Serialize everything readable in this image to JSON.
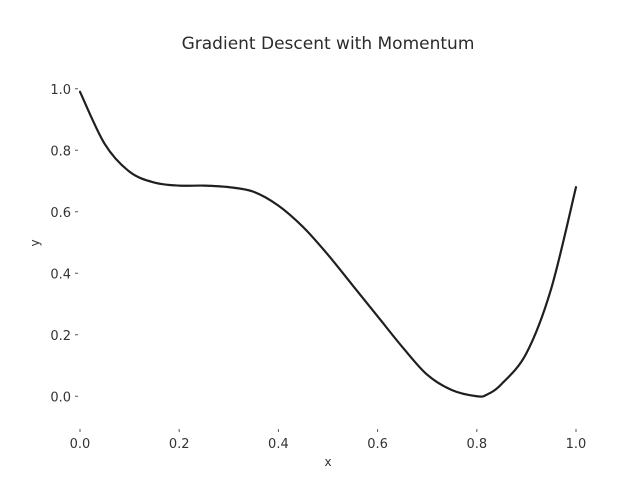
{
  "chart_data": {
    "type": "line",
    "title": "Gradient Descent with Momentum",
    "xlabel": "x",
    "ylabel": "y",
    "xlim": [
      0.0,
      1.0
    ],
    "ylim": [
      -0.1,
      1.1
    ],
    "xticks": [
      0.0,
      0.2,
      0.4,
      0.6,
      0.8,
      1.0
    ],
    "xtick_labels": [
      "0.0",
      "0.2",
      "0.4",
      "0.6",
      "0.8",
      "1.0"
    ],
    "yticks": [
      0.0,
      0.2,
      0.4,
      0.6,
      0.8,
      1.0
    ],
    "ytick_labels": [
      "0.0",
      "0.2",
      "0.4",
      "0.6",
      "0.8",
      "1.0"
    ],
    "grid": false,
    "line_color": "#1f1f1f",
    "series": [
      {
        "x": [
          0.0,
          0.05,
          0.1,
          0.15,
          0.2,
          0.25,
          0.3,
          0.35,
          0.4,
          0.45,
          0.5,
          0.55,
          0.6,
          0.65,
          0.7,
          0.75,
          0.8,
          0.82,
          0.85,
          0.9,
          0.95,
          1.0
        ],
        "y": [
          0.99,
          0.82,
          0.73,
          0.695,
          0.685,
          0.685,
          0.68,
          0.665,
          0.62,
          0.55,
          0.46,
          0.36,
          0.26,
          0.16,
          0.07,
          0.02,
          0.0,
          0.005,
          0.04,
          0.14,
          0.35,
          0.68
        ]
      }
    ]
  }
}
